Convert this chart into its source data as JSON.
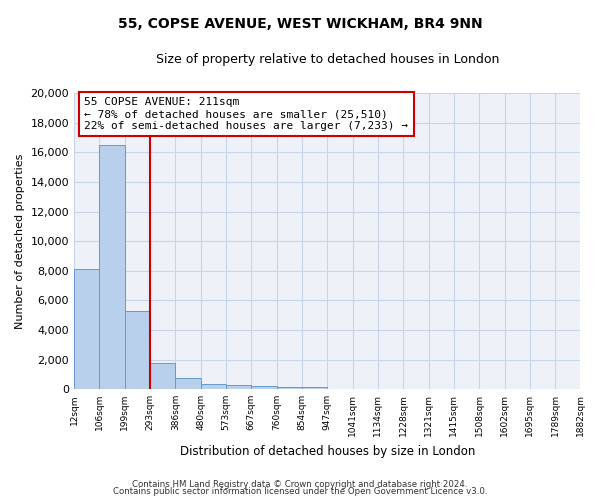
{
  "title1": "55, COPSE AVENUE, WEST WICKHAM, BR4 9NN",
  "title2": "Size of property relative to detached houses in London",
  "xlabel": "Distribution of detached houses by size in London",
  "ylabel": "Number of detached properties",
  "annotation_line1": "55 COPSE AVENUE: 211sqm",
  "annotation_line2": "← 78% of detached houses are smaller (25,510)",
  "annotation_line3": "22% of semi-detached houses are larger (7,233) →",
  "bar_heights": [
    8100,
    16500,
    5300,
    1750,
    750,
    350,
    270,
    200,
    175,
    150,
    0,
    0,
    0,
    0,
    0,
    0,
    0,
    0,
    0,
    0
  ],
  "bin_labels": [
    "12sqm",
    "106sqm",
    "199sqm",
    "293sqm",
    "386sqm",
    "480sqm",
    "573sqm",
    "667sqm",
    "760sqm",
    "854sqm",
    "947sqm",
    "1041sqm",
    "1134sqm",
    "1228sqm",
    "1321sqm",
    "1415sqm",
    "1508sqm",
    "1602sqm",
    "1695sqm",
    "1789sqm",
    "1882sqm"
  ],
  "n_bins": 20,
  "bar_color": "#b8d0eb",
  "bar_edge_color": "#6699cc",
  "vline_color": "#cc0000",
  "vline_bin": 2,
  "annotation_box_color": "#cc0000",
  "grid_color": "#c8d4e8",
  "background_color": "#eef2f8",
  "ylim": [
    0,
    20000
  ],
  "yticks": [
    0,
    2000,
    4000,
    6000,
    8000,
    10000,
    12000,
    14000,
    16000,
    18000,
    20000
  ],
  "footer1": "Contains HM Land Registry data © Crown copyright and database right 2024.",
  "footer2": "Contains public sector information licensed under the Open Government Licence v3.0."
}
